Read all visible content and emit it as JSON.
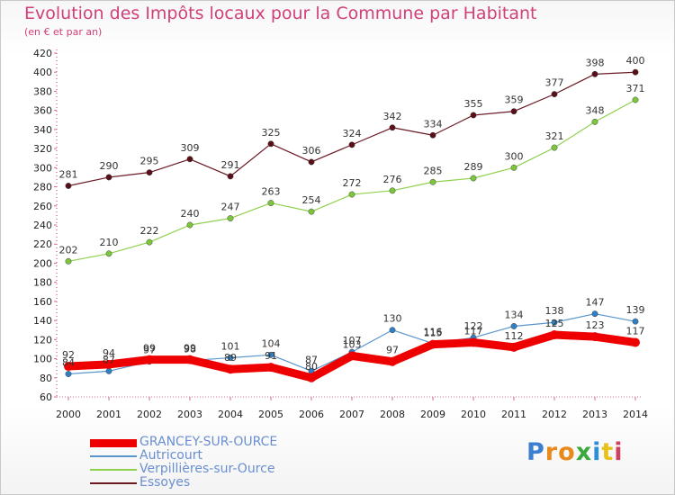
{
  "header": {
    "title": "Evolution des Impôts locaux pour la Commune par Habitant",
    "subtitle": "(en € et par an)"
  },
  "logo": {
    "text": "Proxiti",
    "colors": [
      "#3b7fd1",
      "#e8891b",
      "#e8891b",
      "#3ba93b",
      "#2d8fd8",
      "#e8c21b",
      "#d04060"
    ]
  },
  "chart_data": {
    "type": "line",
    "x": [
      2000,
      2001,
      2002,
      2003,
      2004,
      2005,
      2006,
      2007,
      2008,
      2009,
      2010,
      2011,
      2012,
      2013,
      2014
    ],
    "ylim": [
      60,
      420
    ],
    "yticks": [
      60,
      80,
      100,
      120,
      140,
      160,
      180,
      200,
      220,
      240,
      260,
      280,
      300,
      320,
      340,
      360,
      380,
      400,
      420
    ],
    "grid": false,
    "legend_position": "bottom-left",
    "series": [
      {
        "name": "Essoyes",
        "color": "#6b1a24",
        "values": [
          281,
          290,
          295,
          309,
          291,
          325,
          306,
          324,
          342,
          334,
          355,
          359,
          377,
          398,
          400
        ]
      },
      {
        "name": "Verpillières-sur-Ource",
        "color": "#8fd14f",
        "values": [
          202,
          210,
          222,
          240,
          247,
          263,
          254,
          272,
          276,
          285,
          289,
          300,
          321,
          348,
          371
        ]
      },
      {
        "name": "Autricourt",
        "color": "#5a96cc",
        "values": [
          84,
          87,
          97,
          98,
          101,
          104,
          87,
          107,
          130,
          116,
          122,
          134,
          138,
          147,
          139
        ]
      },
      {
        "name": "GRANCEY-SUR-OURCE",
        "color": "#ee0000",
        "values": [
          92,
          94,
          99,
          99,
          89,
          91,
          80,
          103,
          97,
          115,
          117,
          112,
          125,
          123,
          117
        ]
      }
    ]
  },
  "legend": {
    "items": [
      {
        "label": "GRANCEY-SUR-OURCE",
        "color": "#ee0000",
        "text_color": "#6a8fd0"
      },
      {
        "label": "Autricourt",
        "color": "#5a96cc",
        "text_color": "#6a8fd0"
      },
      {
        "label": "Verpillières-sur-Ource",
        "color": "#8fd14f",
        "text_color": "#6a8fd0"
      },
      {
        "label": "Essoyes",
        "color": "#6b1a24",
        "text_color": "#6a8fd0"
      }
    ]
  }
}
